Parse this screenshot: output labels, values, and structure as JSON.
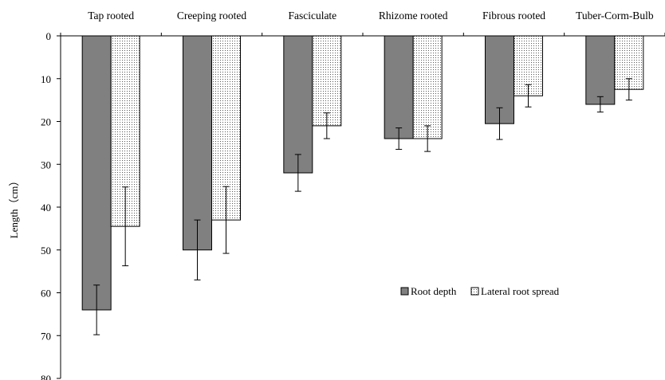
{
  "chart_data": {
    "type": "bar",
    "orientation": "vertical-inverted",
    "categories": [
      "Tap rooted",
      "Creeping rooted",
      "Fasciculate",
      "Rhizome rooted",
      "Fibrous rooted",
      "Tuber-Corm-Bulb"
    ],
    "series": [
      {
        "name": "Root depth",
        "values": [
          64,
          50,
          32,
          24,
          20.5,
          16
        ],
        "error": [
          5.8,
          7,
          4.3,
          2.5,
          3.7,
          1.8
        ],
        "color": "#808080",
        "pattern": "solid"
      },
      {
        "name": "Lateral root spread",
        "values": [
          44.5,
          43,
          21,
          24,
          14,
          12.5
        ],
        "error": [
          9.2,
          7.8,
          3,
          3,
          2.6,
          2.5
        ],
        "color": "#ffffff",
        "pattern": "dotted"
      }
    ],
    "ylabel": "Length（cm）",
    "xlabel": "",
    "title": "",
    "ylim": [
      0,
      80
    ],
    "yticks": [
      0,
      10,
      20,
      30,
      40,
      50,
      60,
      70,
      80
    ],
    "y_inverted": true,
    "x_axis_position": "top",
    "grid": false,
    "legend_position": "right-middle"
  }
}
